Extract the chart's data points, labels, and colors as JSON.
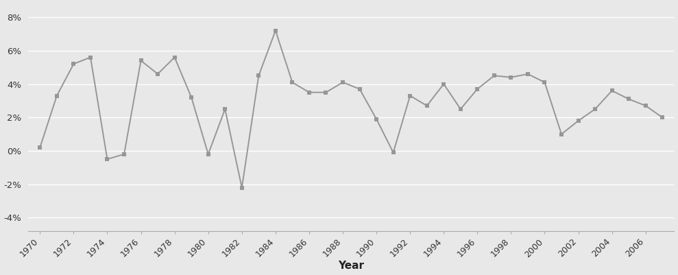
{
  "years": [
    1970,
    1971,
    1972,
    1973,
    1974,
    1975,
    1976,
    1977,
    1978,
    1979,
    1980,
    1981,
    1982,
    1983,
    1984,
    1985,
    1986,
    1987,
    1988,
    1989,
    1990,
    1991,
    1992,
    1993,
    1994,
    1995,
    1996,
    1997,
    1998,
    1999,
    2000,
    2001,
    2002,
    2003,
    2004,
    2005,
    2006,
    2007
  ],
  "values": [
    0.2,
    3.3,
    5.2,
    5.6,
    -0.5,
    -0.2,
    5.4,
    4.6,
    5.6,
    3.2,
    -0.2,
    2.5,
    -2.2,
    4.5,
    7.2,
    4.1,
    3.5,
    3.5,
    4.1,
    3.7,
    1.9,
    -0.1,
    3.3,
    2.7,
    4.0,
    2.5,
    3.7,
    4.5,
    4.4,
    4.6,
    4.1,
    1.0,
    1.8,
    2.5,
    3.6,
    3.1,
    2.7,
    2.0
  ],
  "line_color": "#969696",
  "marker_color": "#969696",
  "bg_color": "#e8e8e8",
  "plot_bg_color": "#e8e8e8",
  "xlabel": "Year",
  "ytick_labels": [
    "-4%",
    "-2%",
    "0%",
    "2%",
    "4%",
    "6%",
    "8%"
  ],
  "ytick_values": [
    -4,
    -2,
    0,
    2,
    4,
    6,
    8
  ],
  "ylim": [
    -4.8,
    8.8
  ],
  "xlim": [
    1969.3,
    2007.7
  ],
  "xtick_years": [
    1970,
    1972,
    1974,
    1976,
    1978,
    1980,
    1982,
    1984,
    1986,
    1988,
    1990,
    1992,
    1994,
    1996,
    1998,
    2000,
    2002,
    2004,
    2006
  ],
  "grid_color": "#ffffff",
  "spine_color": "#aaaaaa"
}
